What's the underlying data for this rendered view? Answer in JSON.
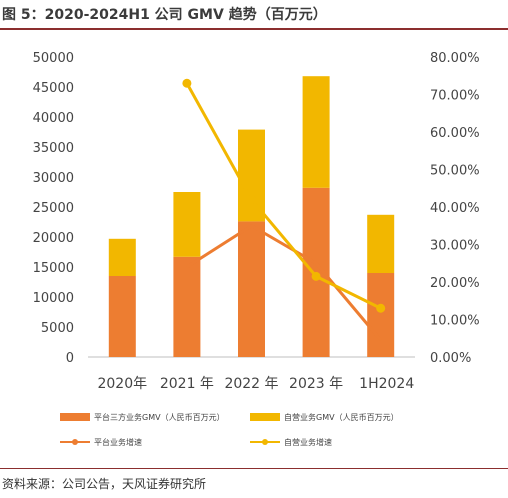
{
  "header": {
    "title": "图 5：2020-2024H1 公司 GMV 趋势（百万元）"
  },
  "footer": {
    "source": "资料来源：公司公告，天风证券研究所"
  },
  "chart_data": {
    "type": "bar",
    "categories": [
      "2020年",
      "2021 年",
      "2022 年",
      "2023 年",
      "1H2024"
    ],
    "left_axis": {
      "ylim": [
        0,
        50000
      ],
      "ticks": [
        "0",
        "5000",
        "10000",
        "15000",
        "20000",
        "25000",
        "30000",
        "35000",
        "40000",
        "45000",
        "50000"
      ]
    },
    "right_axis": {
      "ylim": [
        0,
        0.8
      ],
      "ticks": [
        "0.00%",
        "10.00%",
        "20.00%",
        "30.00%",
        "40.00%",
        "50.00%",
        "60.00%",
        "70.00%",
        "80.00%"
      ]
    },
    "stacked_bars": [
      {
        "name": "平台三方业务GMV（人民币百万元）",
        "color": "#ed7d31",
        "values": [
          13500,
          16700,
          22600,
          28200,
          14000
        ]
      },
      {
        "name": "自营业务GMV（人民币百万元）",
        "color": "#f2b700",
        "values": [
          6200,
          10800,
          15300,
          18600,
          9700
        ]
      }
    ],
    "lines": [
      {
        "name": "平台业务增速",
        "color": "#ed7d31",
        "values": [
          null,
          0.24,
          0.35,
          0.25,
          0.045
        ]
      },
      {
        "name": "自营业务增速",
        "color": "#f2b700",
        "values": [
          null,
          0.73,
          0.42,
          0.215,
          0.13
        ]
      }
    ],
    "grid": false,
    "legend_position": "bottom"
  }
}
